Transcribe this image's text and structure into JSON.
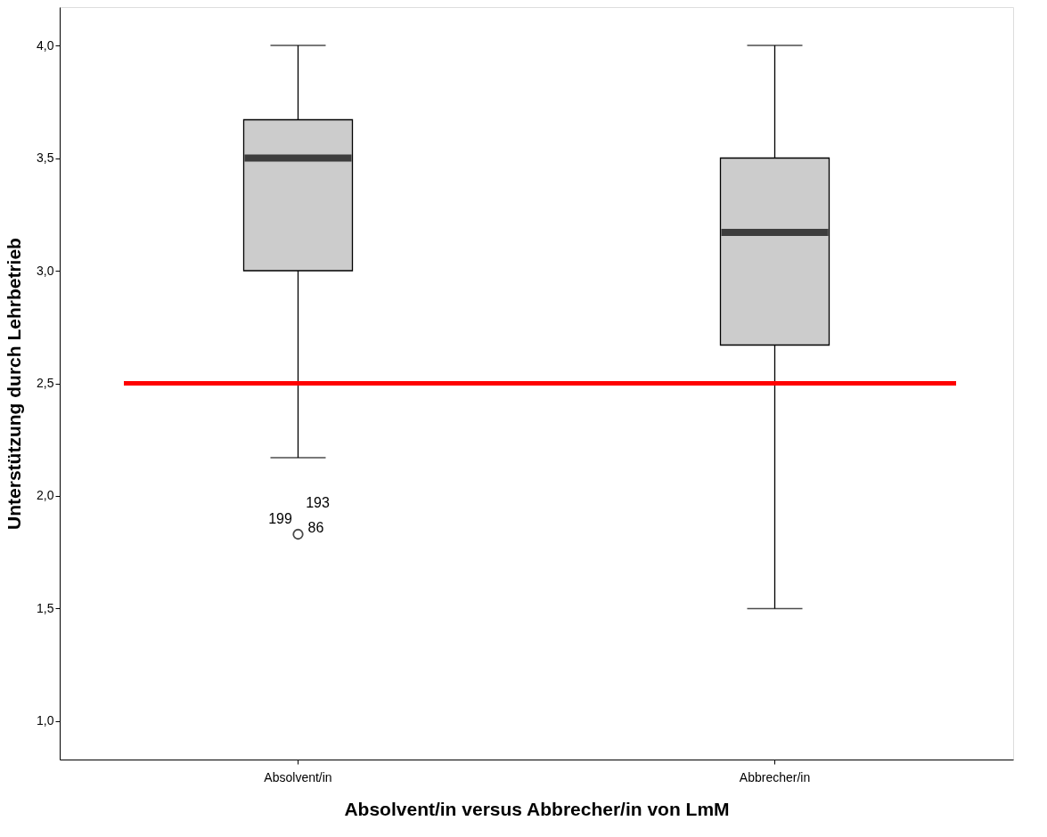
{
  "chart_data": {
    "type": "box",
    "xlabel": "Absolvent/in versus Abbrecher/in von LmM",
    "ylabel": "Unterstützung durch Lehrbetrieb",
    "categories": [
      "Absolvent/in",
      "Abbrecher/in"
    ],
    "series": [
      {
        "color": "#cccccc",
        "boxes": [
          {
            "low": 2.17,
            "q1": 3.0,
            "median": 3.5,
            "q3": 3.67,
            "high": 4.0,
            "outliers": [
              1.83
            ]
          },
          {
            "low": 1.5,
            "q1": 2.67,
            "median": 3.17,
            "q3": 3.5,
            "high": 4.0
          }
        ]
      }
    ],
    "ylim": [
      0.83,
      4.17
    ],
    "yticks": [
      {
        "value": 1.0,
        "label": "1,0"
      },
      {
        "value": 1.5,
        "label": "1,5"
      },
      {
        "value": 2.0,
        "label": "2,0"
      },
      {
        "value": 2.5,
        "label": "2,5"
      },
      {
        "value": 3.0,
        "label": "3,0"
      },
      {
        "value": 3.5,
        "label": "3,5"
      },
      {
        "value": 4.0,
        "label": "4,0"
      }
    ],
    "ref_lines": [
      {
        "axis": "y",
        "value": 2.5,
        "color": "#ff0000"
      }
    ],
    "annotations": [
      "199",
      "193",
      "86"
    ]
  }
}
